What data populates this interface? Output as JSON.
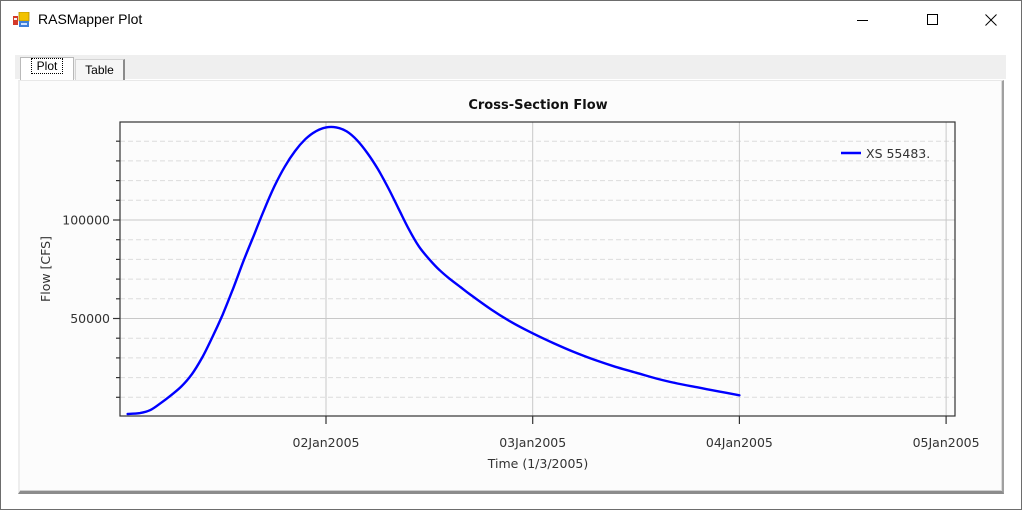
{
  "window": {
    "title": "RASMapper Plot",
    "controls": {
      "minimize": "minimize",
      "maximize": "maximize",
      "close": "close"
    }
  },
  "tabs": [
    {
      "label": "Plot",
      "active": true
    },
    {
      "label": "Table",
      "active": false
    }
  ],
  "colors": {
    "series": "#0000ff",
    "grid_major": "#c8c8c8",
    "grid_minor": "#e0e0e0",
    "axis": "#333333",
    "text": "#333333"
  },
  "chart_data": {
    "type": "line",
    "title": "Cross-Section Flow",
    "xlabel": "Time (1/3/2005)",
    "ylabel": "Flow [CFS]",
    "x_tick_labels": [
      "02Jan2005",
      "03Jan2005",
      "04Jan2005",
      "05Jan2005"
    ],
    "y_tick_labels": [
      "50000",
      "100000"
    ],
    "y_major_ticks": [
      50000,
      100000
    ],
    "y_minor_step": 10000,
    "ylim": [
      0,
      148000
    ],
    "xlim_days": [
      0.95,
      4.04
    ],
    "x_unit": "days since 01Jan2005 00:00",
    "grid": {
      "major": "solid",
      "minor": "dashed"
    },
    "legend": {
      "position": "top-right",
      "entries": [
        "XS 55483."
      ]
    },
    "series": [
      {
        "name": "XS 55483.",
        "x_days": [
          1.04,
          1.1,
          1.15,
          1.2,
          1.25,
          1.3,
          1.35,
          1.4,
          1.45,
          1.5,
          1.55,
          1.6,
          1.65,
          1.7,
          1.75,
          1.8,
          1.85,
          1.9,
          1.95,
          2.0,
          2.05,
          2.1,
          2.15,
          2.2,
          2.25,
          2.3,
          2.35,
          2.4,
          2.45,
          2.5,
          2.55,
          2.6,
          2.65,
          2.7,
          2.8,
          2.9,
          3.0,
          3.1,
          3.2,
          3.3,
          3.4,
          3.5,
          3.6,
          3.7,
          3.8,
          3.9,
          4.0
        ],
        "values": [
          1500,
          2000,
          3500,
          7000,
          11000,
          15500,
          21500,
          30000,
          40500,
          52000,
          65000,
          79000,
          92000,
          105000,
          117000,
          127000,
          135000,
          141000,
          145000,
          147000,
          147000,
          145000,
          140500,
          134000,
          126000,
          116500,
          106000,
          95500,
          86500,
          80000,
          74500,
          70000,
          66000,
          62000,
          54500,
          48000,
          42500,
          37500,
          33000,
          29000,
          25500,
          22500,
          19500,
          17000,
          15000,
          13000,
          11000
        ]
      }
    ]
  }
}
